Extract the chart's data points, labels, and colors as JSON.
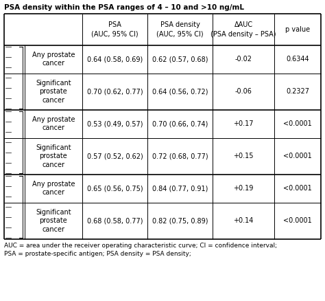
{
  "title": "PSA density within the PSA ranges of 4 – 10 and >10 ng/mL",
  "rows": [
    {
      "label": "Any prostate\ncancer",
      "psa": "0.64 (0.58, 0.69)",
      "psad": "0.62 (0.57, 0.68)",
      "dauc": "-0.02",
      "pval": "0.6344",
      "group": 0
    },
    {
      "label": "Significant\nprostate\ncancer",
      "psa": "0.70 (0.62, 0.77)",
      "psad": "0.64 (0.56, 0.72)",
      "dauc": "-0.06",
      "pval": "0.2327",
      "group": 0
    },
    {
      "label": "Any prostate\ncancer",
      "psa": "0.53 (0.49, 0.57)",
      "psad": "0.70 (0.66, 0.74)",
      "dauc": "+0.17",
      "pval": "<0.0001",
      "group": 1
    },
    {
      "label": "Significant\nprostate\ncancer",
      "psa": "0.57 (0.52, 0.62)",
      "psad": "0.72 (0.68, 0.77)",
      "dauc": "+0.15",
      "pval": "<0.0001",
      "group": 1
    },
    {
      "label": "Any prostate\ncancer",
      "psa": "0.65 (0.56, 0.75)",
      "psad": "0.84 (0.77, 0.91)",
      "dauc": "+0.19",
      "pval": "<0.0001",
      "group": 2
    },
    {
      "label": "Significant\nprostate\ncancer",
      "psa": "0.68 (0.58, 0.77)",
      "psad": "0.82 (0.75, 0.89)",
      "dauc": "+0.14",
      "pval": "<0.0001",
      "group": 2
    }
  ],
  "footnote1": "AUC = area under the receiver operating characteristic curve; CI = confidence interval;",
  "footnote2": "PSA = prostate-specific antigen; PSA density = PSA density;",
  "bg_color": "#ffffff",
  "text_color": "#000000",
  "font_size": 7.0,
  "header_font_size": 7.0,
  "title_font_size": 7.5
}
